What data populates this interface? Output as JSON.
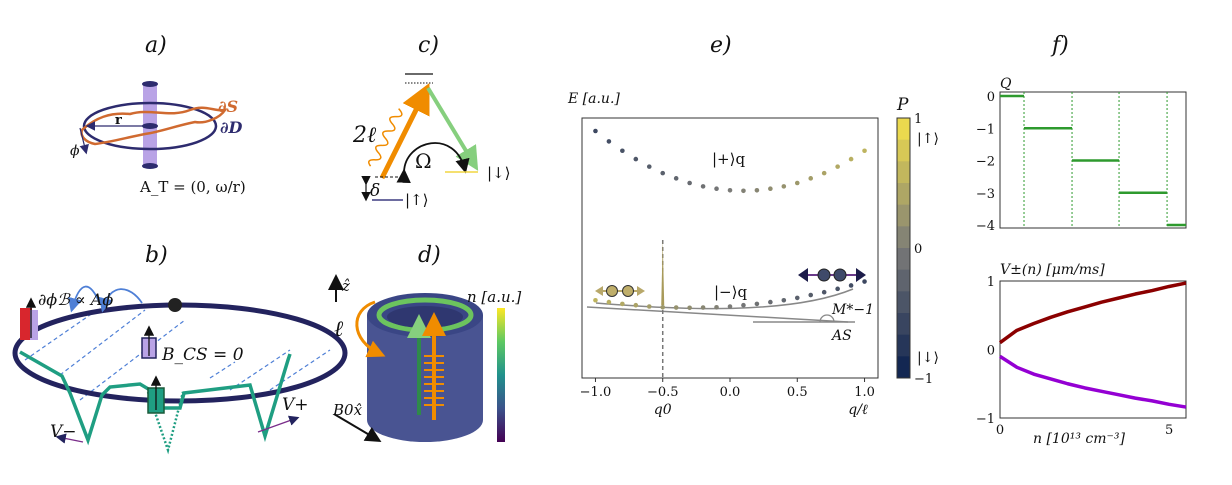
{
  "panels": {
    "a": {
      "label": "a)",
      "r_label": "r",
      "phi_label": "ϕ",
      "dS_label": "∂S",
      "dD_label": "∂D",
      "formula": "A_T = (0, ω/r)",
      "colors": {
        "curve": "#d06a30",
        "loop": "#2d2b6e",
        "flux_tube": "#b9a3e6"
      }
    },
    "b": {
      "label": "b)",
      "gradient_label": "∂ϕℬ ∝ Aϕ",
      "bcs_label": "B_CS = 0",
      "vplus_label": "V+",
      "vminus_label": "V−",
      "colors": {
        "ring": "#23235e",
        "potential": "#1f9e82",
        "hop_arrows": "#4e7fd6",
        "red_tube": "#d8262d"
      }
    },
    "c": {
      "label": "c)",
      "two_l_label": "2ℓ",
      "omega_label": "Ω",
      "down_label": "|↓⟩",
      "up_label": "|↑⟩",
      "delta_label": "δ",
      "colors": {
        "pump": "#f08c00",
        "stokes": "#86cf7e",
        "down_level": "#f2d640",
        "up_level": "#3d3b80"
      }
    },
    "d": {
      "label": "d)",
      "z_label": "ẑ",
      "l_label": "ℓ",
      "b0_label": "B0x̂",
      "colorbar_label": "n [a.u.]",
      "colors": {
        "body": "#3f4b8c",
        "ring": "#6cc45e",
        "arrow_orange": "#f08c00",
        "arrow_green": "#2f8a4a"
      }
    },
    "e": {
      "label": "e)"
    },
    "f": {
      "label": "f)"
    }
  },
  "chart_data": [
    {
      "id": "e",
      "type": "scatter",
      "ylabel": "E [a.u.]",
      "xlabel": "q/ℓ",
      "xlim": [
        -1.1,
        1.1
      ],
      "ylim": [
        0,
        1
      ],
      "xticks": [
        "−1.0",
        "−0.5",
        "0.0",
        "0.5",
        "1.0"
      ],
      "xtick_values": [
        -1.0,
        -0.5,
        0.0,
        0.5,
        1.0
      ],
      "q0_label": "q0",
      "q0": -0.5,
      "annotations": {
        "upper": "|+⟩q",
        "lower": "|−⟩q",
        "mass": "M*−1",
        "as": "AS"
      },
      "x": [
        -1.0,
        -0.9,
        -0.8,
        -0.7,
        -0.6,
        -0.5,
        -0.4,
        -0.3,
        -0.2,
        -0.1,
        0.0,
        0.1,
        0.2,
        0.3,
        0.4,
        0.5,
        0.6,
        0.7,
        0.8,
        0.9,
        1.0
      ],
      "series": [
        {
          "band": "upper",
          "E": [
            0.95,
            0.91,
            0.874,
            0.842,
            0.813,
            0.788,
            0.768,
            0.75,
            0.737,
            0.728,
            0.722,
            0.72,
            0.722,
            0.728,
            0.737,
            0.75,
            0.768,
            0.788,
            0.813,
            0.842,
            0.874
          ],
          "P": [
            -0.55,
            -0.5,
            -0.44,
            -0.39,
            -0.33,
            -0.28,
            -0.22,
            -0.17,
            -0.11,
            -0.06,
            0,
            0.06,
            0.11,
            0.17,
            0.22,
            0.28,
            0.33,
            0.39,
            0.44,
            0.5,
            0.55
          ]
        },
        {
          "band": "lower",
          "E": [
            0.299,
            0.292,
            0.285,
            0.28,
            0.275,
            0.272,
            0.271,
            0.27,
            0.271,
            0.272,
            0.275,
            0.28,
            0.285,
            0.292,
            0.299,
            0.308,
            0.319,
            0.33,
            0.343,
            0.356,
            0.371
          ],
          "P": [
            0.55,
            0.5,
            0.44,
            0.39,
            0.33,
            0.28,
            0.22,
            0.17,
            0.11,
            0.06,
            0,
            -0.06,
            -0.11,
            -0.17,
            -0.22,
            -0.28,
            -0.33,
            -0.39,
            -0.44,
            -0.5,
            -0.55
          ]
        }
      ],
      "colorbar": {
        "label": "P",
        "ticks": [
          "1",
          "0",
          "−1"
        ],
        "tick_values": [
          1,
          0,
          -1
        ],
        "up_label": "|↑⟩",
        "down_label": "|↓⟩",
        "colors": {
          "low": "#0a1f4f",
          "mid": "#7b7b78",
          "high": "#f5e24a"
        }
      }
    },
    {
      "id": "f-top",
      "type": "line",
      "ylabel": "Q",
      "xlim": [
        0,
        5.5
      ],
      "ylim": [
        -4,
        0
      ],
      "yticks": [
        "0",
        "−1",
        "−2",
        "−3",
        "−4"
      ],
      "ytick_values": [
        0,
        -1,
        -2,
        -3,
        -4
      ],
      "transitions": [
        0.71,
        2.13,
        3.52,
        4.94
      ],
      "steps": [
        0,
        -1,
        -2,
        -3,
        -4
      ],
      "color": "#2e9a2e"
    },
    {
      "id": "f-bottom",
      "type": "line",
      "ylabel": "V±(n) [μm/ms]",
      "xlabel": "n [10¹³ cm⁻³]",
      "xlim": [
        0,
        5.5
      ],
      "ylim": [
        -1,
        1
      ],
      "xticks": [
        "0",
        "5"
      ],
      "xtick_values": [
        0,
        5
      ],
      "yticks": [
        "1",
        "0",
        "−1"
      ],
      "ytick_values": [
        1,
        0,
        -1
      ],
      "x": [
        0,
        0.5,
        1,
        1.5,
        2,
        2.5,
        3,
        3.5,
        4,
        4.5,
        5,
        5.5
      ],
      "series": [
        {
          "name": "V+",
          "values": [
            0.1,
            0.28,
            0.38,
            0.47,
            0.55,
            0.62,
            0.69,
            0.75,
            0.81,
            0.86,
            0.92,
            0.97
          ],
          "color": "#8b0000"
        },
        {
          "name": "V−",
          "values": [
            -0.1,
            -0.26,
            -0.36,
            -0.43,
            -0.5,
            -0.56,
            -0.61,
            -0.66,
            -0.71,
            -0.75,
            -0.8,
            -0.84
          ],
          "color": "#9400d3"
        }
      ]
    }
  ]
}
